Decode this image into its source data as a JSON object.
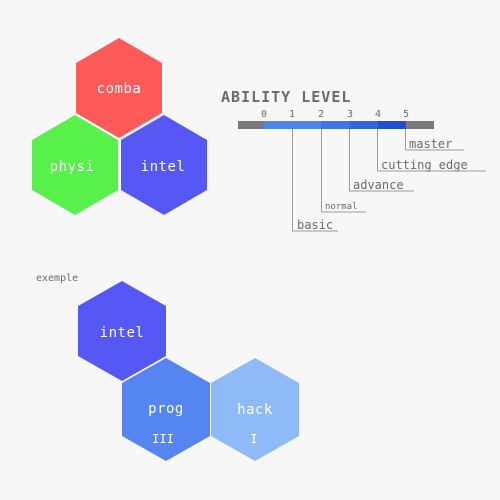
{
  "top_cluster": {
    "combat": {
      "label": "comba",
      "color": "#ff5a5a"
    },
    "physical": {
      "label": "physi",
      "color": "#58f04a"
    },
    "intel": {
      "label": "intel",
      "color": "#5558f5"
    }
  },
  "ability_level": {
    "title": "ABILITY LEVEL",
    "ticks": [
      "0",
      "1",
      "2",
      "3",
      "4",
      "5"
    ],
    "levels": [
      "basic",
      "normal",
      "advance",
      "cutting edge",
      "master"
    ],
    "bar_colors": {
      "outer": "#7a7a7a",
      "level1": "#4f86ee",
      "level2": "#3f73e6",
      "level3": "#3366db",
      "level4": "#1f4fcf"
    }
  },
  "example": {
    "caption": "exemple",
    "intel": {
      "label": "intel",
      "color": "#5558f5"
    },
    "prog": {
      "label": "prog",
      "level_marks": "III",
      "color": "#5585f0"
    },
    "hack": {
      "label": "hack",
      "level_marks": "I",
      "color": "#8fbaf8"
    }
  }
}
